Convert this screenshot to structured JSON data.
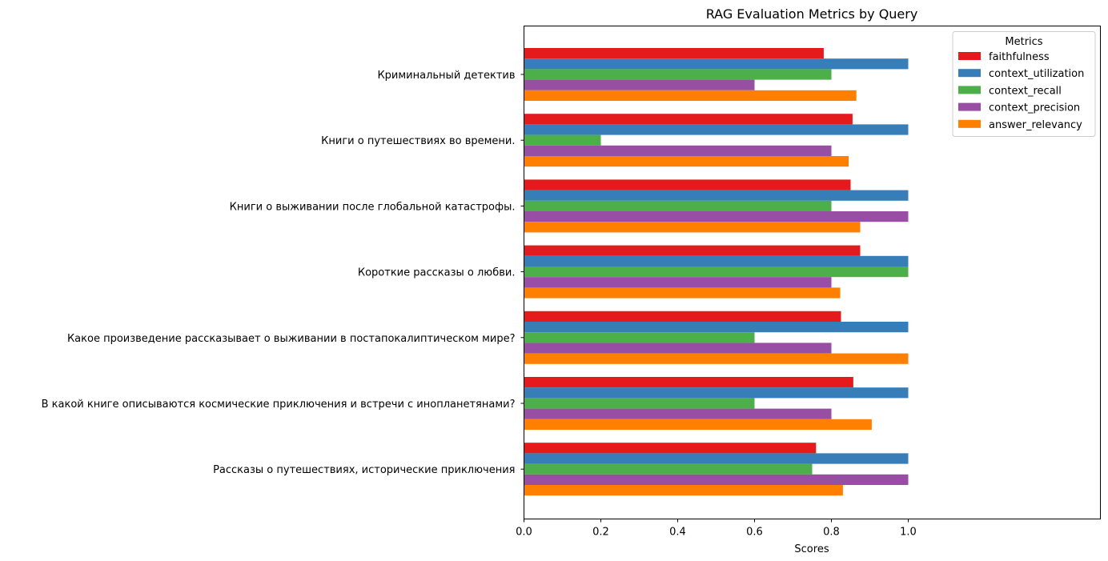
{
  "chart_data": {
    "type": "bar",
    "orientation": "horizontal",
    "title": "RAG Evaluation Metrics by Query",
    "xlabel": "Scores",
    "ylabel": "",
    "xlim": [
      0,
      1.5
    ],
    "xticks": [
      0.0,
      0.2,
      0.4,
      0.6,
      0.8,
      1.0
    ],
    "xtick_labels": [
      "0.0",
      "0.2",
      "0.4",
      "0.6",
      "0.8",
      "1.0"
    ],
    "grid": false,
    "legend": {
      "title": "Metrics",
      "position": "top-right"
    },
    "categories": [
      "Криминальный детектив",
      "Книги о путешествиях во времени.",
      "Книги о выживании после глобальной катастрофы.",
      "Короткие рассказы о любви.",
      "Какое произведение рассказывает о выживании в постапокалиптическом мире?",
      "В какой книге описываются космические приключения и встречи с инопланетянами?",
      "Рассказы о путешествиях, исторические приключения"
    ],
    "series": [
      {
        "name": "faithfulness",
        "color": "#e41a1c",
        "values": [
          0.78,
          0.855,
          0.85,
          0.875,
          0.825,
          0.857,
          0.76
        ]
      },
      {
        "name": "context_utilization",
        "color": "#377eb8",
        "values": [
          1.0,
          1.0,
          1.0,
          1.0,
          1.0,
          1.0,
          1.0
        ]
      },
      {
        "name": "context_recall",
        "color": "#4daf4a",
        "values": [
          0.8,
          0.2,
          0.8,
          1.0,
          0.6,
          0.6,
          0.75
        ]
      },
      {
        "name": "context_precision",
        "color": "#984ea3",
        "values": [
          0.6,
          0.8,
          1.0,
          0.8,
          0.8,
          0.8,
          1.0
        ]
      },
      {
        "name": "answer_relevancy",
        "color": "#ff7f00",
        "values": [
          0.865,
          0.845,
          0.875,
          0.823,
          1.0,
          0.905,
          0.83
        ]
      }
    ]
  }
}
